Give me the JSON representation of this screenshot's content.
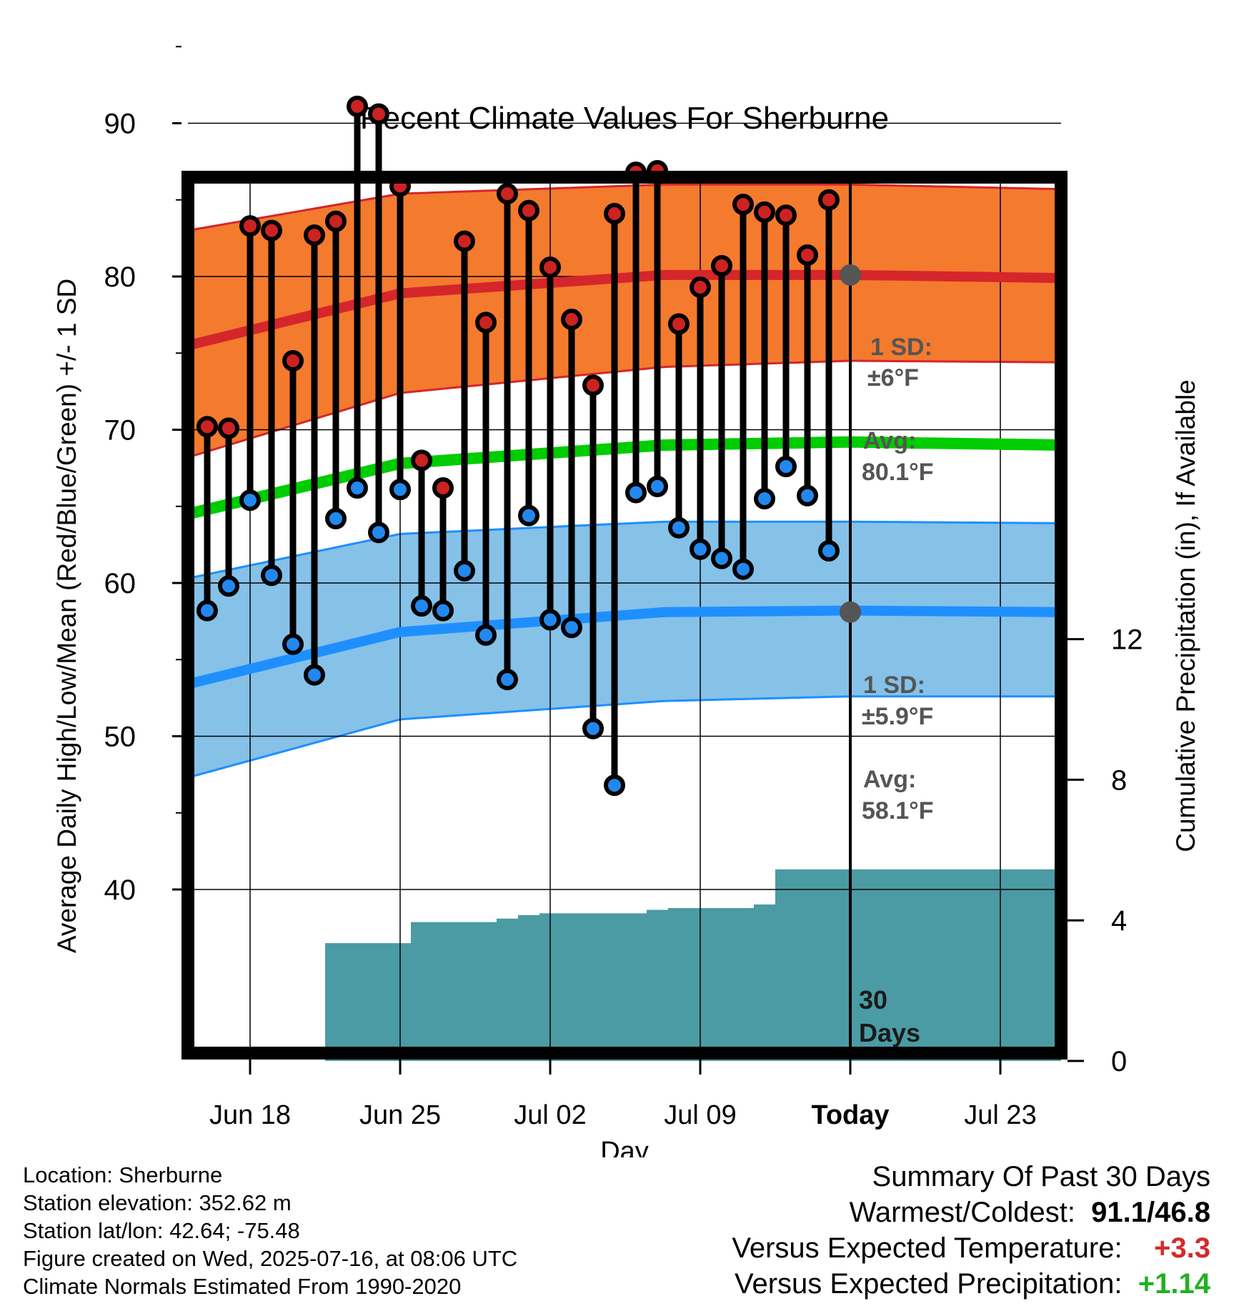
{
  "chart_data": {
    "type": "line",
    "title": "Recent Climate Values For Sherburne",
    "xlabel": "Day",
    "ylabel_left": "Average Daily High/Low/Mean (Red/Blue/Green) +/- 1 SD",
    "ylabel_right": "Cumulative Precipitation (in), If Available",
    "x_ticks": [
      "Jun 18",
      "Jun 25",
      "Jul 02",
      "Jul 09",
      "Today",
      "Jul 23"
    ],
    "y_left_ticks": [
      40,
      50,
      60,
      70,
      80,
      90
    ],
    "y_right_ticks": [
      0,
      4,
      8,
      12
    ],
    "ylim_left": [
      39.2,
      96.5
    ],
    "ylim_right": [
      0,
      22.2
    ],
    "grid": true,
    "days_window_label": "30 Days",
    "daily": {
      "high": [
        70.2,
        70.1,
        83.3,
        83.0,
        74.5,
        82.7,
        83.6,
        91.1,
        90.6,
        85.9,
        68.0,
        66.2,
        82.3,
        77.0,
        85.4,
        84.3,
        80.6,
        77.2,
        72.9,
        84.1,
        86.8,
        86.9,
        76.9,
        79.3,
        80.7,
        84.7,
        84.2,
        84.0,
        81.4,
        85.0
      ],
      "low": [
        58.2,
        59.8,
        65.4,
        60.5,
        56.0,
        54.0,
        64.2,
        66.2,
        63.3,
        66.1,
        58.5,
        58.2,
        60.8,
        56.6,
        53.7,
        64.4,
        57.6,
        57.1,
        50.5,
        46.8,
        65.9,
        66.3,
        63.6,
        62.2,
        61.6,
        60.9,
        65.5,
        67.6,
        65.7,
        62.1
      ]
    },
    "normals": {
      "high_avg": [
        75.5,
        78.9,
        80.1,
        80.1,
        79.9
      ],
      "high_sd_upper": [
        83.0,
        85.4,
        86.0,
        86.0,
        85.7
      ],
      "high_sd_lower": [
        68.2,
        72.4,
        74.1,
        74.5,
        74.4
      ],
      "mean_avg": [
        64.5,
        67.8,
        69.0,
        69.2,
        69.0
      ],
      "low_avg": [
        53.4,
        56.8,
        58.1,
        58.2,
        58.1
      ],
      "low_sd_upper": [
        60.3,
        63.2,
        64.0,
        64.0,
        63.9
      ],
      "low_sd_lower": [
        47.3,
        51.1,
        52.3,
        52.6,
        52.6
      ]
    },
    "cumulative_precip": [
      0,
      0,
      0,
      0,
      0,
      0,
      3.35,
      3.35,
      3.35,
      3.35,
      3.95,
      3.95,
      3.95,
      3.95,
      4.05,
      4.15,
      4.2,
      4.2,
      4.2,
      4.2,
      4.2,
      4.3,
      4.35,
      4.35,
      4.35,
      4.35,
      4.45,
      5.45,
      5.45,
      5.45
    ],
    "annotations": {
      "high_sd": "1 SD:",
      "high_sd_value": "±6°F",
      "high_avg_label": "Avg:",
      "high_avg_value": "80.1°F",
      "low_sd": "1 SD:",
      "low_sd_value": "±5.9°F",
      "low_avg_label": "Avg:",
      "low_avg_value": "58.1°F",
      "high_avg_today": 80.1,
      "low_avg_today": 58.1
    },
    "colors": {
      "high_band": "#f47a2e",
      "high_line": "#d4262b",
      "mean_line": "#00cc00",
      "low_band": "#86c1e8",
      "low_line": "#1e8fff",
      "precip": "#4a9ba4",
      "high_marker": "#cc2222",
      "low_marker": "#2288ee",
      "annotation_text": "#555555"
    }
  },
  "footer": {
    "location": "Location: Sherburne",
    "elevation": "Station elevation: 352.62 m",
    "latlon": "Station lat/lon: 42.64; -75.48",
    "created": "Figure created on Wed, 2025-07-16, at 08:06 UTC",
    "normals": "Climate Normals Estimated From 1990-2020"
  },
  "summary": {
    "title": "Summary Of Past 30 Days",
    "warm_cold_label": "Warmest/Coldest:",
    "warm_cold_value": "91.1/46.8",
    "temp_label": "Versus Expected Temperature:",
    "temp_value": "+3.3",
    "precip_label": "Versus Expected Precipitation:",
    "precip_value": "+1.14"
  }
}
